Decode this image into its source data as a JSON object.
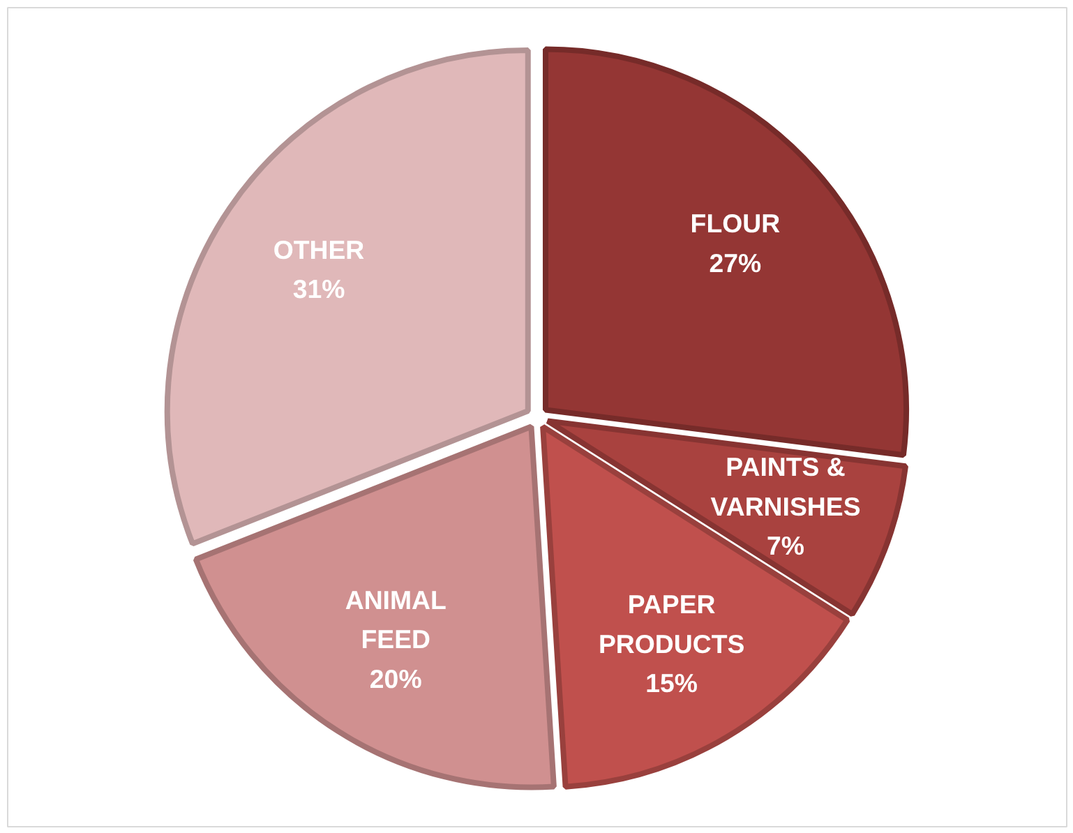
{
  "chart_data": {
    "type": "pie",
    "categories": [
      "FLOUR",
      "PAINTS & VARNISHES",
      "PAPER PRODUCTS",
      "ANIMAL FEED",
      "OTHER"
    ],
    "values": [
      27,
      7,
      15,
      20,
      31
    ],
    "colors": [
      "#943634",
      "#a9423f",
      "#c0504d",
      "#d09090",
      "#e0b8b9"
    ],
    "value_labels": [
      "27%",
      "7%",
      "15%",
      "20%",
      "31%"
    ]
  }
}
